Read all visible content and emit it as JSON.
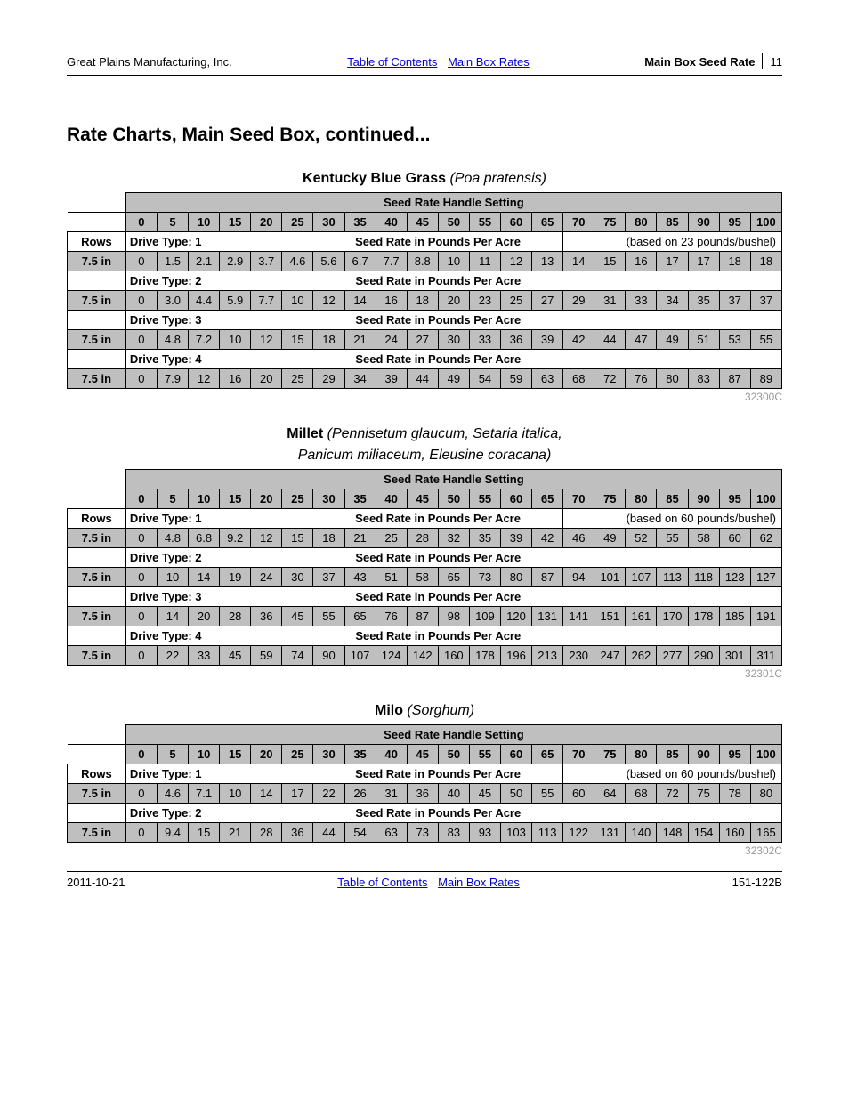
{
  "header": {
    "company": "Great Plains Manufacturing, Inc.",
    "link_toc": "Table of Contents",
    "link_mbr": "Main Box Rates",
    "section": "Main Box Seed Rate",
    "page": "11"
  },
  "section_title": "Rate Charts, Main Seed Box, continued...",
  "handle_title": "Seed Rate Handle Setting",
  "handle_cols": [
    "0",
    "5",
    "10",
    "15",
    "20",
    "25",
    "30",
    "35",
    "40",
    "45",
    "50",
    "55",
    "60",
    "65",
    "70",
    "75",
    "80",
    "85",
    "90",
    "95",
    "100"
  ],
  "rows_label": "Rows",
  "rate_label": "Seed Rate in Pounds Per Acre",
  "row_in": "7.5 in",
  "crops": [
    {
      "name": "Kentucky Blue Grass",
      "latin": "(Poa pratensis)",
      "basis": "(based on 23 pounds/bushel)",
      "code": "32300C",
      "drives": [
        {
          "label": "Drive Type: 1",
          "vals": [
            "0",
            "1.5",
            "2.1",
            "2.9",
            "3.7",
            "4.6",
            "5.6",
            "6.7",
            "7.7",
            "8.8",
            "10",
            "11",
            "12",
            "13",
            "14",
            "15",
            "16",
            "17",
            "17",
            "18",
            "18"
          ]
        },
        {
          "label": "Drive Type: 2",
          "vals": [
            "0",
            "3.0",
            "4.4",
            "5.9",
            "7.7",
            "10",
            "12",
            "14",
            "16",
            "18",
            "20",
            "23",
            "25",
            "27",
            "29",
            "31",
            "33",
            "34",
            "35",
            "37",
            "37"
          ]
        },
        {
          "label": "Drive Type: 3",
          "vals": [
            "0",
            "4.8",
            "7.2",
            "10",
            "12",
            "15",
            "18",
            "21",
            "24",
            "27",
            "30",
            "33",
            "36",
            "39",
            "42",
            "44",
            "47",
            "49",
            "51",
            "53",
            "55"
          ]
        },
        {
          "label": "Drive Type: 4",
          "vals": [
            "0",
            "7.9",
            "12",
            "16",
            "20",
            "25",
            "29",
            "34",
            "39",
            "44",
            "49",
            "54",
            "59",
            "63",
            "68",
            "72",
            "76",
            "80",
            "83",
            "87",
            "89"
          ]
        }
      ]
    },
    {
      "name": "Millet",
      "latin": "(Pennisetum glaucum, Setaria italica,",
      "latin2": "Panicum miliaceum, Eleusine coracana)",
      "basis": "(based on 60 pounds/bushel)",
      "code": "32301C",
      "drives": [
        {
          "label": "Drive Type: 1",
          "vals": [
            "0",
            "4.8",
            "6.8",
            "9.2",
            "12",
            "15",
            "18",
            "21",
            "25",
            "28",
            "32",
            "35",
            "39",
            "42",
            "46",
            "49",
            "52",
            "55",
            "58",
            "60",
            "62"
          ]
        },
        {
          "label": "Drive Type: 2",
          "vals": [
            "0",
            "10",
            "14",
            "19",
            "24",
            "30",
            "37",
            "43",
            "51",
            "58",
            "65",
            "73",
            "80",
            "87",
            "94",
            "101",
            "107",
            "113",
            "118",
            "123",
            "127"
          ]
        },
        {
          "label": "Drive Type: 3",
          "vals": [
            "0",
            "14",
            "20",
            "28",
            "36",
            "45",
            "55",
            "65",
            "76",
            "87",
            "98",
            "109",
            "120",
            "131",
            "141",
            "151",
            "161",
            "170",
            "178",
            "185",
            "191"
          ]
        },
        {
          "label": "Drive Type: 4",
          "vals": [
            "0",
            "22",
            "33",
            "45",
            "59",
            "74",
            "90",
            "107",
            "124",
            "142",
            "160",
            "178",
            "196",
            "213",
            "230",
            "247",
            "262",
            "277",
            "290",
            "301",
            "311"
          ]
        }
      ]
    },
    {
      "name": "Milo",
      "latin": "(Sorghum)",
      "basis": "(based on 60 pounds/bushel)",
      "code": "32302C",
      "drives": [
        {
          "label": "Drive Type: 1",
          "vals": [
            "0",
            "4.6",
            "7.1",
            "10",
            "14",
            "17",
            "22",
            "26",
            "31",
            "36",
            "40",
            "45",
            "50",
            "55",
            "60",
            "64",
            "68",
            "72",
            "75",
            "78",
            "80"
          ]
        },
        {
          "label": "Drive Type: 2",
          "vals": [
            "0",
            "9.4",
            "15",
            "21",
            "28",
            "36",
            "44",
            "54",
            "63",
            "73",
            "83",
            "93",
            "103",
            "113",
            "122",
            "131",
            "140",
            "148",
            "154",
            "160",
            "165"
          ]
        }
      ]
    }
  ],
  "footer": {
    "date": "2011-10-21",
    "link_toc": "Table of Contents",
    "link_mbr": "Main Box Rates",
    "doc": "151-122B"
  }
}
